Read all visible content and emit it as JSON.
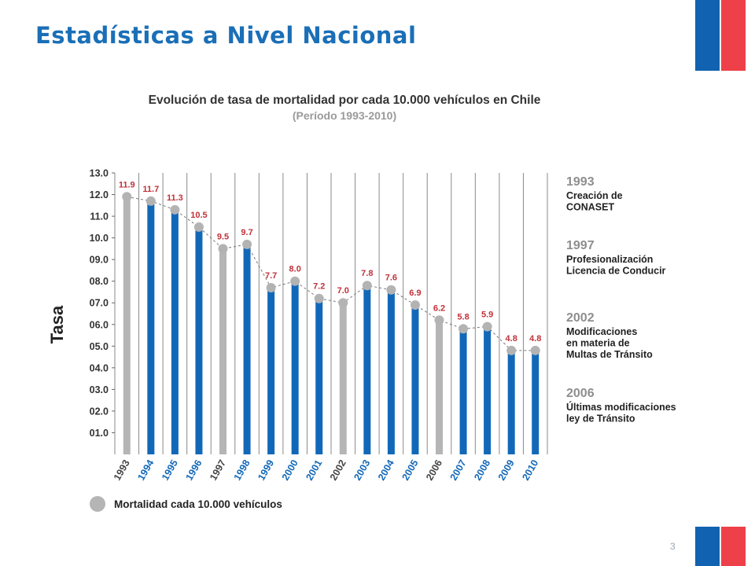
{
  "slide": {
    "title": "Estadísticas a Nivel Nacional",
    "page_number": "3"
  },
  "colors": {
    "title_blue": "#1a6fb7",
    "bar_blue": "#1268b8",
    "bar_gray": "#b5b5b5",
    "label_red": "#c0313a",
    "flag_blue": "#1162b0",
    "flag_red": "#ee4048"
  },
  "chart_data": {
    "type": "bar",
    "title": "Evolución de tasa de mortalidad por cada 10.000 vehículos en Chile",
    "subtitle": "(Período 1993-2010)",
    "ylabel": "Tasa",
    "xlabel": "",
    "ylim": [
      0,
      13
    ],
    "yticks": [
      "01.0",
      "02.0",
      "03.0",
      "04.0",
      "05.0",
      "06.0",
      "07.0",
      "08.0",
      "09.0",
      "10.0",
      "11.0",
      "12.0",
      "13.0"
    ],
    "categories": [
      "1993",
      "1994",
      "1995",
      "1996",
      "1997",
      "1998",
      "1999",
      "2000",
      "2001",
      "2002",
      "2003",
      "2004",
      "2005",
      "2006",
      "2007",
      "2008",
      "2009",
      "2010"
    ],
    "values": [
      11.9,
      11.7,
      11.3,
      10.5,
      9.5,
      9.7,
      7.7,
      8.0,
      7.2,
      7.0,
      7.8,
      7.6,
      6.9,
      6.2,
      5.8,
      5.9,
      4.8,
      4.8
    ],
    "value_labels": [
      "11.9",
      "11.7",
      "11.3",
      "10.5",
      "9.5",
      "9.7",
      "7.7",
      "8.0",
      "7.2",
      "7.0",
      "7.8",
      "7.6",
      "6.9",
      "6.2",
      "5.8",
      "5.9",
      "4.8",
      "4.8"
    ],
    "bar_colors": [
      "gray",
      "blue",
      "blue",
      "blue",
      "gray",
      "blue",
      "blue",
      "blue",
      "blue",
      "gray",
      "blue",
      "blue",
      "blue",
      "gray",
      "blue",
      "blue",
      "blue",
      "blue"
    ],
    "legend": {
      "label": "Mortalidad cada 10.000 vehículos",
      "position": "bottom-left"
    },
    "grid": "vertical",
    "annotations": [
      {
        "year": "1993",
        "lines": [
          "Creación de",
          "CONASET"
        ]
      },
      {
        "year": "1997",
        "lines": [
          "Profesionalización",
          "Licencia de Conducir"
        ]
      },
      {
        "year": "2002",
        "lines": [
          "Modificaciones",
          "en materia de",
          "Multas de Tránsito"
        ]
      },
      {
        "year": "2006",
        "lines": [
          "Últimas modificaciones",
          "ley de Tránsito"
        ]
      }
    ]
  }
}
